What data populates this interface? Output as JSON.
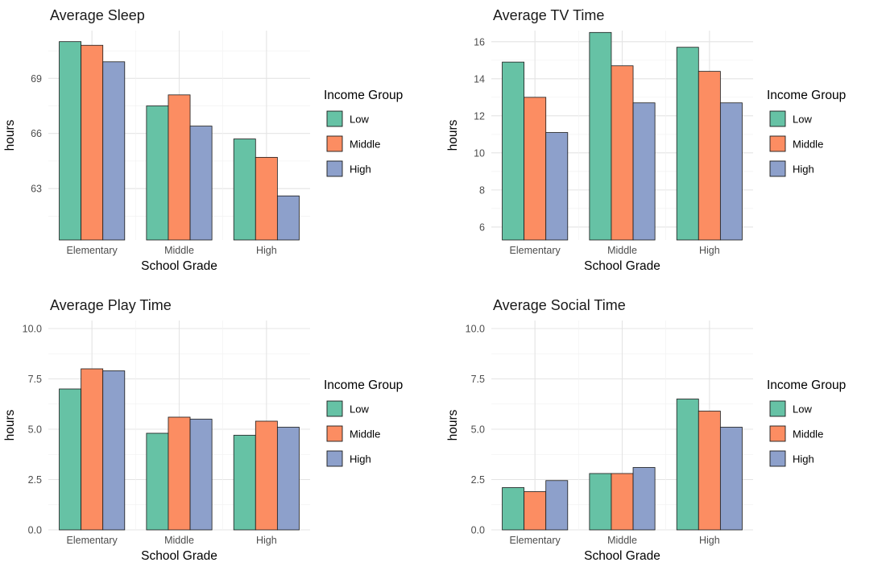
{
  "palette": {
    "Low": "#66C2A5",
    "Middle": "#FC8D62",
    "High": "#8DA0CB",
    "bar_stroke": "#1A1A1A",
    "grid_major": "#E4E4E4",
    "grid_minor": "#F2F2F2",
    "tick_text": "#4D4D4D",
    "axis_text": "#000000",
    "title_text": "#1A1A1A",
    "background": "#FFFFFF"
  },
  "chart_data": [
    {
      "type": "bar",
      "title": "Average Sleep",
      "xlabel": "School Grade",
      "ylabel": "hours",
      "categories": [
        "Elementary",
        "Middle",
        "High"
      ],
      "series": [
        {
          "name": "Low",
          "values": [
            71.0,
            67.5,
            65.7
          ]
        },
        {
          "name": "Middle",
          "values": [
            70.8,
            68.1,
            64.7
          ]
        },
        {
          "name": "High",
          "values": [
            69.9,
            66.4,
            62.6
          ]
        }
      ],
      "ylim": [
        60.2,
        71.6
      ],
      "yticks": [
        63,
        66,
        69
      ],
      "ytick_labels": [
        "63",
        "66",
        "69"
      ],
      "legend_title": "Income Group",
      "legend_entries": [
        "Low",
        "Middle",
        "High"
      ],
      "legend_position": "right",
      "grid": true
    },
    {
      "type": "bar",
      "title": "Average TV Time",
      "xlabel": "School Grade",
      "ylabel": "hours",
      "categories": [
        "Elementary",
        "Middle",
        "High"
      ],
      "series": [
        {
          "name": "Low",
          "values": [
            14.9,
            16.5,
            15.7
          ]
        },
        {
          "name": "Middle",
          "values": [
            13.0,
            14.7,
            14.4
          ]
        },
        {
          "name": "High",
          "values": [
            11.1,
            12.7,
            12.7
          ]
        }
      ],
      "ylim": [
        5.3,
        16.6
      ],
      "yticks": [
        6,
        8,
        10,
        12,
        14,
        16
      ],
      "ytick_labels": [
        "6",
        "8",
        "10",
        "12",
        "14",
        "16"
      ],
      "legend_title": "Income Group",
      "legend_entries": [
        "Low",
        "Middle",
        "High"
      ],
      "legend_position": "right",
      "grid": true
    },
    {
      "type": "bar",
      "title": "Average Play Time",
      "xlabel": "School Grade",
      "ylabel": "hours",
      "categories": [
        "Elementary",
        "Middle",
        "High"
      ],
      "series": [
        {
          "name": "Low",
          "values": [
            7.0,
            4.8,
            4.7
          ]
        },
        {
          "name": "Middle",
          "values": [
            8.0,
            5.6,
            5.4
          ]
        },
        {
          "name": "High",
          "values": [
            7.9,
            5.5,
            5.1
          ]
        }
      ],
      "ylim": [
        0,
        10.4
      ],
      "yticks": [
        0,
        2.5,
        5,
        7.5,
        10
      ],
      "ytick_labels": [
        "0.0",
        "2.5",
        "5.0",
        "7.5",
        "10.0"
      ],
      "legend_title": "Income Group",
      "legend_entries": [
        "Low",
        "Middle",
        "High"
      ],
      "legend_position": "right",
      "grid": true
    },
    {
      "type": "bar",
      "title": "Average Social Time",
      "xlabel": "School Grade",
      "ylabel": "hours",
      "categories": [
        "Elementary",
        "Middle",
        "High"
      ],
      "series": [
        {
          "name": "Low",
          "values": [
            2.1,
            2.8,
            6.5
          ]
        },
        {
          "name": "Middle",
          "values": [
            1.9,
            2.8,
            5.9
          ]
        },
        {
          "name": "High",
          "values": [
            2.45,
            3.1,
            5.1
          ]
        }
      ],
      "ylim": [
        0,
        10.4
      ],
      "yticks": [
        0,
        2.5,
        5,
        7.5,
        10
      ],
      "ytick_labels": [
        "0.0",
        "2.5",
        "5.0",
        "7.5",
        "10.0"
      ],
      "legend_title": "Income Group",
      "legend_entries": [
        "Low",
        "Middle",
        "High"
      ],
      "legend_position": "right",
      "grid": true
    }
  ]
}
